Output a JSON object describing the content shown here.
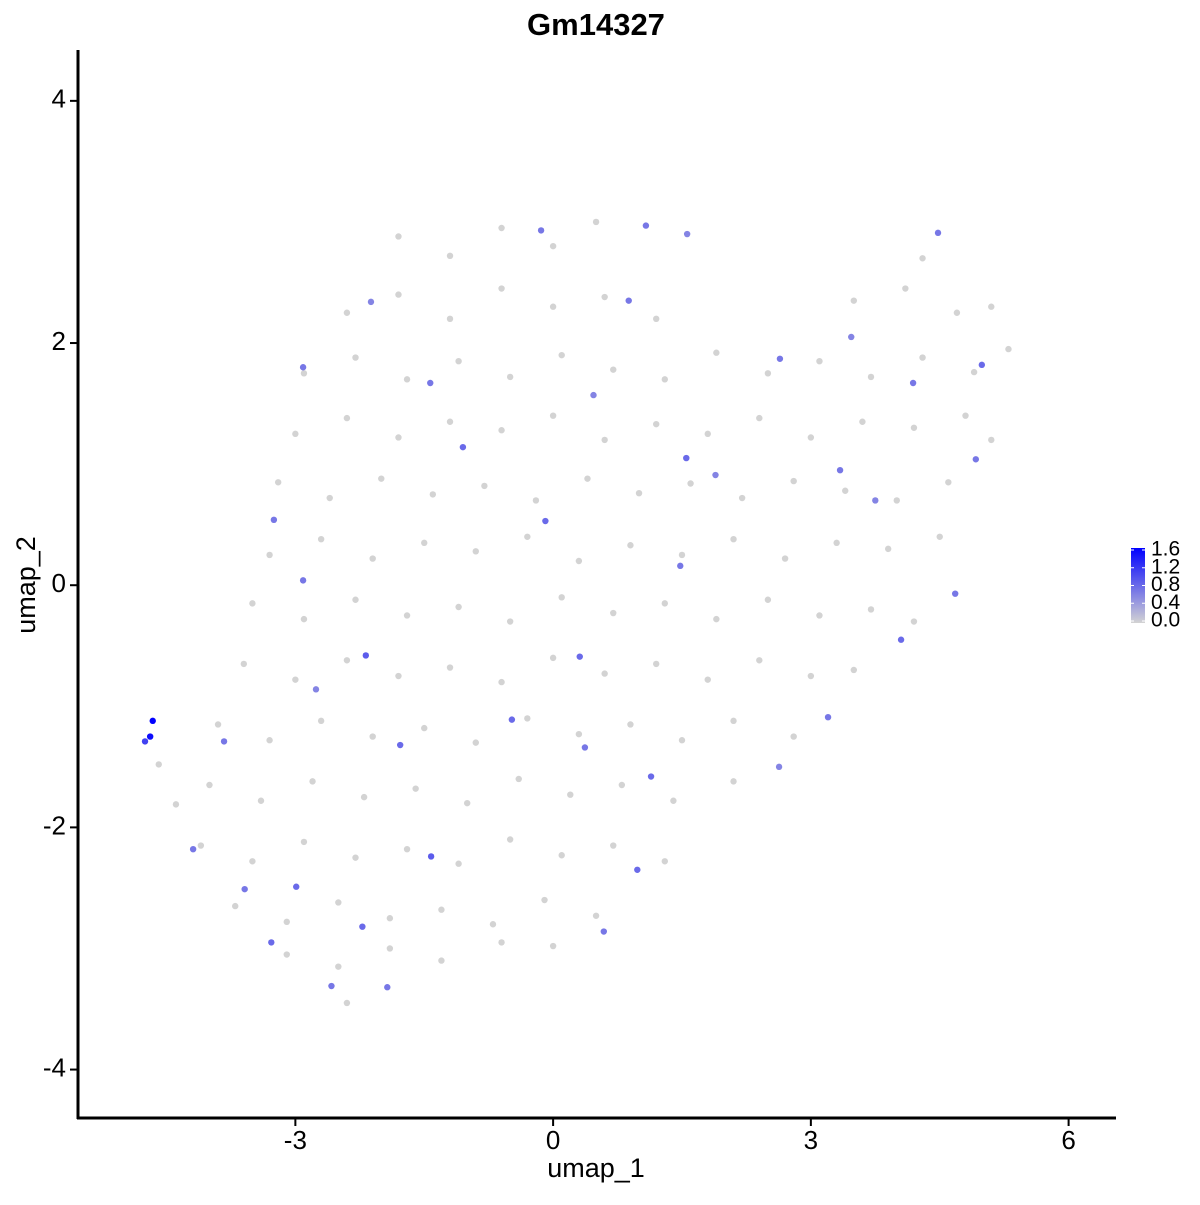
{
  "chart_data": {
    "type": "scatter",
    "title": "Gm14327",
    "x_label": "umap_1",
    "y_label": "umap_2",
    "x": [
      -1.8,
      -1.2,
      -0.6,
      0.0,
      0.5,
      4.3,
      -2.4,
      -1.8,
      -1.2,
      -0.6,
      0.0,
      0.6,
      1.2,
      3.5,
      4.1,
      4.7,
      5.1,
      -2.9,
      -2.3,
      -1.7,
      -1.1,
      -0.5,
      0.1,
      0.7,
      1.3,
      1.9,
      2.5,
      3.1,
      3.7,
      4.3,
      4.9,
      5.3,
      -3.0,
      -2.4,
      -1.8,
      -1.2,
      -0.6,
      0.0,
      0.6,
      1.2,
      1.8,
      2.4,
      3.0,
      3.6,
      4.2,
      4.8,
      5.1,
      -3.2,
      -2.6,
      -2.0,
      -1.4,
      -0.8,
      -0.2,
      0.4,
      1.0,
      1.6,
      2.2,
      2.8,
      3.4,
      4.0,
      4.6,
      -3.3,
      -2.7,
      -2.1,
      -1.5,
      -0.9,
      -0.3,
      0.3,
      0.9,
      1.5,
      2.1,
      2.7,
      3.3,
      3.9,
      4.5,
      -3.5,
      -2.9,
      -2.3,
      -1.7,
      -1.1,
      -0.5,
      0.1,
      0.7,
      1.3,
      1.9,
      2.5,
      3.1,
      3.7,
      4.2,
      -3.6,
      -3.0,
      -2.4,
      -1.8,
      -1.2,
      -0.6,
      0.0,
      0.6,
      1.2,
      1.8,
      2.4,
      3.0,
      3.5,
      -3.9,
      -3.3,
      -2.7,
      -2.1,
      -1.5,
      -0.9,
      -0.3,
      0.3,
      0.9,
      1.5,
      2.1,
      2.8,
      -4.59,
      -4.0,
      -3.4,
      -2.8,
      -2.2,
      -1.6,
      -1.0,
      -0.4,
      0.2,
      0.8,
      1.4,
      2.1,
      -4.39,
      -4.1,
      -3.5,
      -2.9,
      -2.3,
      -1.7,
      -1.1,
      -0.5,
      0.1,
      0.7,
      1.3,
      -3.7,
      -3.1,
      -2.5,
      -1.9,
      -1.3,
      -0.7,
      -0.1,
      0.5,
      -3.1,
      -2.5,
      -1.9,
      -1.3,
      -0.6,
      0.0,
      -2.4,
      -4.66,
      -4.69,
      -4.75,
      -4.19,
      4.48,
      1.56,
      1.08,
      -0.14,
      -2.12,
      -2.91,
      -1.43,
      -1.05,
      -0.09,
      -3.25,
      -2.91,
      -2.18,
      -2.76,
      -1.78,
      -1.42,
      -2.22,
      -1.93,
      0.98,
      1.14,
      0.59,
      2.63,
      3.2,
      4.05,
      4.68,
      4.92,
      4.99,
      4.19,
      2.64,
      3.47,
      1.89,
      1.55,
      1.48,
      0.31,
      0.37,
      -0.48,
      -3.59,
      -2.99,
      -2.58,
      -3.28,
      -3.83,
      3.34,
      3.75,
      0.88,
      0.47
    ],
    "y": [
      2.88,
      2.72,
      2.95,
      2.8,
      3.0,
      2.7,
      2.25,
      2.4,
      2.2,
      2.45,
      2.3,
      2.38,
      2.2,
      2.35,
      2.45,
      2.25,
      2.3,
      1.75,
      1.88,
      1.7,
      1.85,
      1.72,
      1.9,
      1.78,
      1.7,
      1.92,
      1.75,
      1.85,
      1.72,
      1.88,
      1.76,
      1.95,
      1.25,
      1.38,
      1.22,
      1.35,
      1.28,
      1.4,
      1.2,
      1.33,
      1.25,
      1.38,
      1.22,
      1.35,
      1.3,
      1.4,
      1.2,
      0.85,
      0.72,
      0.88,
      0.75,
      0.82,
      0.7,
      0.88,
      0.76,
      0.84,
      0.72,
      0.86,
      0.78,
      0.7,
      0.85,
      0.25,
      0.38,
      0.22,
      0.35,
      0.28,
      0.4,
      0.2,
      0.33,
      0.25,
      0.38,
      0.22,
      0.35,
      0.3,
      0.4,
      -0.15,
      -0.28,
      -0.12,
      -0.25,
      -0.18,
      -0.3,
      -0.1,
      -0.23,
      -0.15,
      -0.28,
      -0.12,
      -0.25,
      -0.2,
      -0.3,
      -0.65,
      -0.78,
      -0.62,
      -0.75,
      -0.68,
      -0.8,
      -0.6,
      -0.73,
      -0.65,
      -0.78,
      -0.62,
      -0.75,
      -0.7,
      -1.15,
      -1.28,
      -1.12,
      -1.25,
      -1.18,
      -1.3,
      -1.1,
      -1.23,
      -1.15,
      -1.28,
      -1.12,
      -1.25,
      -1.48,
      -1.65,
      -1.78,
      -1.62,
      -1.75,
      -1.68,
      -1.8,
      -1.6,
      -1.73,
      -1.65,
      -1.78,
      -1.62,
      -1.81,
      -2.15,
      -2.28,
      -2.12,
      -2.25,
      -2.18,
      -2.3,
      -2.1,
      -2.23,
      -2.15,
      -2.28,
      -2.65,
      -2.78,
      -2.62,
      -2.75,
      -2.68,
      -2.8,
      -2.6,
      -2.73,
      -3.05,
      -3.15,
      -3.0,
      -3.1,
      -2.95,
      -2.98,
      -3.45,
      -1.12,
      -1.25,
      -1.29,
      -2.18,
      2.91,
      2.9,
      2.97,
      2.93,
      2.34,
      1.8,
      1.67,
      1.14,
      0.53,
      0.54,
      0.04,
      -0.58,
      -0.86,
      -1.32,
      -2.24,
      -2.82,
      -3.32,
      -2.35,
      -1.58,
      -2.86,
      -1.5,
      -1.09,
      -0.45,
      -0.07,
      1.04,
      1.82,
      1.67,
      1.87,
      2.05,
      0.91,
      1.05,
      0.16,
      -0.59,
      -1.34,
      -1.11,
      -2.51,
      -2.49,
      -3.31,
      -2.95,
      -1.29,
      0.95,
      0.7,
      2.35,
      1.57
    ],
    "values": [
      0,
      0,
      0,
      0,
      0,
      0,
      0,
      0,
      0,
      0,
      0,
      0,
      0,
      0,
      0,
      0,
      0,
      0,
      0,
      0,
      0,
      0,
      0,
      0,
      0,
      0,
      0,
      0,
      0,
      0,
      0,
      0,
      0,
      0,
      0,
      0,
      0,
      0,
      0,
      0,
      0,
      0,
      0,
      0,
      0,
      0,
      0,
      0,
      0,
      0,
      0,
      0,
      0,
      0,
      0,
      0,
      0,
      0,
      0,
      0,
      0,
      0,
      0,
      0,
      0,
      0,
      0,
      0,
      0,
      0,
      0,
      0,
      0,
      0,
      0,
      0,
      0,
      0,
      0,
      0,
      0,
      0,
      0,
      0,
      0,
      0,
      0,
      0,
      0,
      0,
      0,
      0,
      0,
      0,
      0,
      0,
      0,
      0,
      0,
      0,
      0,
      0,
      0,
      0,
      0,
      0,
      0,
      0,
      0,
      0,
      0,
      0,
      0,
      0,
      0,
      0,
      0,
      0,
      0,
      0,
      0,
      0,
      0,
      0,
      0,
      0,
      0,
      0,
      0,
      0,
      0,
      0,
      0,
      0,
      0,
      0,
      0,
      0,
      0,
      0,
      0,
      0,
      0,
      0,
      0,
      0,
      0,
      0,
      0,
      0,
      0,
      0,
      1.6,
      1.5,
      1.1,
      0.7,
      0.7,
      0.6,
      0.7,
      0.7,
      0.6,
      0.7,
      0.7,
      0.8,
      0.8,
      0.7,
      0.7,
      0.9,
      0.6,
      0.8,
      0.9,
      0.8,
      0.7,
      0.8,
      0.8,
      0.7,
      0.6,
      0.7,
      0.8,
      0.7,
      0.7,
      0.8,
      0.7,
      0.7,
      0.6,
      0.6,
      0.8,
      0.7,
      0.8,
      0.7,
      0.8,
      0.7,
      0.8,
      0.7,
      0.8,
      0.7,
      0.7,
      0.6,
      0.7,
      0.6
    ],
    "xlim": [
      -5.53,
      6.54
    ],
    "ylim": [
      -4.4,
      4.42
    ],
    "xticks": [
      -3,
      0,
      3,
      6
    ],
    "yticks": [
      -4,
      -2,
      0,
      2,
      4
    ],
    "color_low": "#d3d3d3",
    "color_high": "#0000ff",
    "color_lim": [
      0,
      1.6
    ],
    "color_ticks": [
      {
        "value": 0,
        "label": "0.0"
      },
      0.4,
      0.8,
      1.2,
      1.6
    ]
  }
}
